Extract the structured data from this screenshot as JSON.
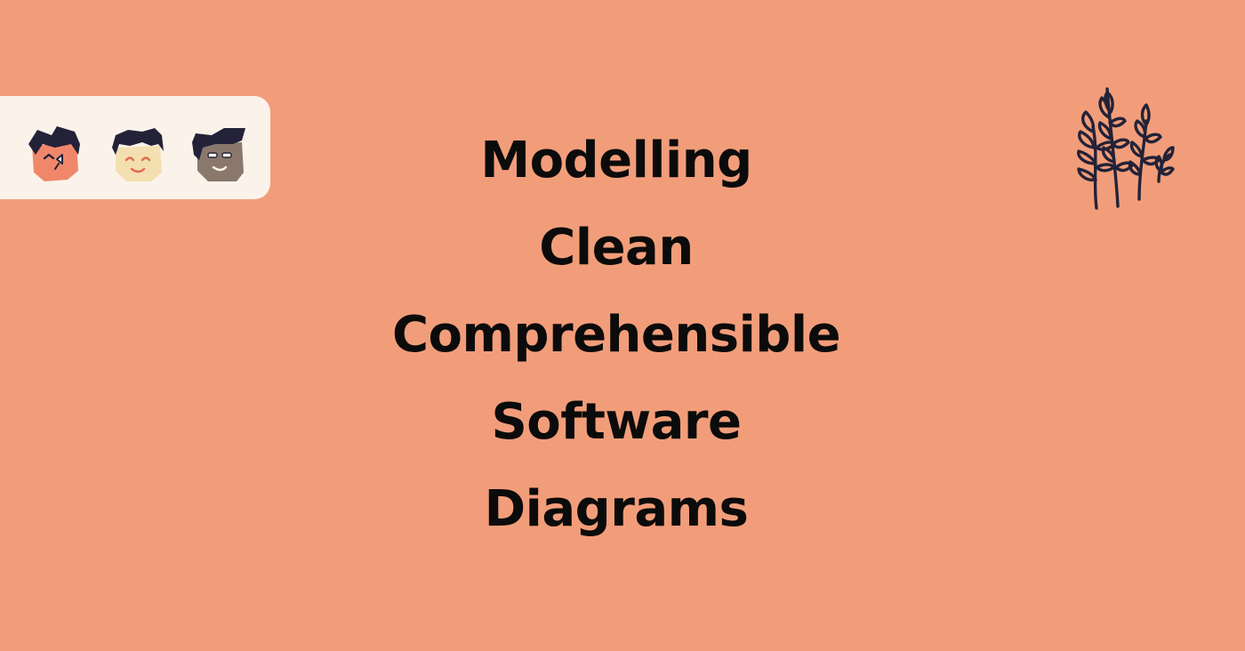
{
  "colors": {
    "background": "#F29D7A",
    "panel": "#FBF3EA",
    "text": "#0B0B0B",
    "ink": "#232238",
    "skin_coral": "#F0876A",
    "skin_light": "#F4DFB0",
    "skin_dark": "#8A786C",
    "smile": "#E46B4F"
  },
  "avatars": [
    {
      "icon": "coral-face-avatar-icon"
    },
    {
      "icon": "light-face-avatar-icon"
    },
    {
      "icon": "grey-face-avatar-icon"
    }
  ],
  "title": {
    "lines": [
      "Modelling",
      "Clean",
      "Comprehensible",
      "Software",
      "Diagrams"
    ]
  },
  "decoration": {
    "icon": "plant-branches-icon"
  }
}
